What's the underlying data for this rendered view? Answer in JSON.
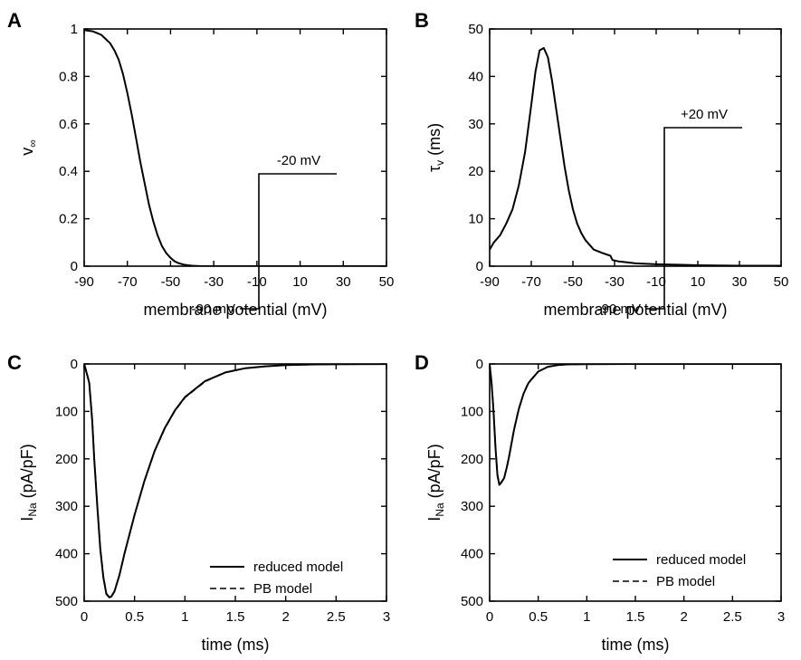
{
  "chart_data": [
    {
      "panel_label": "A",
      "type": "line",
      "xlabel": "membrane potential (mV)",
      "ylabel_main": "v",
      "ylabel_sub": "∞",
      "xlim": [
        -90,
        50
      ],
      "ylim": [
        0,
        1
      ],
      "xticks": [
        "-90",
        "-70",
        "-50",
        "-30",
        "-10",
        "10",
        "30",
        "50"
      ],
      "yticks": [
        "0",
        "0.2",
        "0.4",
        "0.6",
        "0.8",
        "1"
      ],
      "y_inverted": false,
      "series": [
        {
          "style": "solid",
          "x": [
            -90,
            -86,
            -82,
            -78,
            -76,
            -74,
            -72,
            -70,
            -68,
            -66,
            -64,
            -62,
            -60,
            -58,
            -56,
            -54,
            -52,
            -50,
            -48,
            -46,
            -44,
            -42,
            -40,
            -38,
            -35,
            -30,
            -20,
            0,
            20,
            50
          ],
          "y": [
            0.995,
            0.99,
            0.975,
            0.94,
            0.91,
            0.87,
            0.81,
            0.73,
            0.64,
            0.54,
            0.44,
            0.35,
            0.26,
            0.19,
            0.13,
            0.085,
            0.055,
            0.035,
            0.02,
            0.012,
            0.007,
            0.004,
            0.002,
            0.001,
            0,
            0,
            0,
            0,
            0,
            0
          ]
        }
      ]
    },
    {
      "panel_label": "B",
      "type": "line",
      "xlabel": "membrane potential (mV)",
      "ylabel_main": "τ",
      "ylabel_sub": "v",
      "ylabel_unit": " (ms)",
      "xlim": [
        -90,
        50
      ],
      "ylim": [
        0,
        50
      ],
      "xticks": [
        "-90",
        "-70",
        "-50",
        "-30",
        "-10",
        "10",
        "30",
        "50"
      ],
      "yticks": [
        "0",
        "10",
        "20",
        "30",
        "40",
        "50"
      ],
      "y_inverted": false,
      "series": [
        {
          "style": "solid",
          "x": [
            -90,
            -88,
            -85,
            -82,
            -79,
            -76,
            -73,
            -70,
            -68,
            -66,
            -64,
            -62,
            -60,
            -58,
            -56,
            -54,
            -52,
            -50,
            -48,
            -46,
            -44,
            -42,
            -40,
            -36,
            -32,
            -31,
            -28,
            -24,
            -20,
            -10,
            0,
            10,
            30,
            50
          ],
          "y": [
            3.5,
            5,
            6.5,
            9,
            12,
            17,
            24,
            34,
            41,
            45.5,
            46,
            44,
            39,
            33,
            27,
            21,
            16,
            12,
            9,
            7,
            5.5,
            4.5,
            3.5,
            2.8,
            2.2,
            1.3,
            1,
            0.8,
            0.6,
            0.4,
            0.3,
            0.2,
            0.1,
            0.1
          ]
        }
      ]
    },
    {
      "panel_label": "C",
      "type": "line",
      "xlabel": "time (ms)",
      "ylabel_main": "I",
      "ylabel_sub": "Na",
      "ylabel_unit": " (pA/pF)",
      "xlim": [
        0,
        3
      ],
      "ylim": [
        0,
        500
      ],
      "xticks": [
        "0",
        "0.5",
        "1",
        "1.5",
        "2",
        "2.5",
        "3"
      ],
      "yticks": [
        "0",
        "100",
        "200",
        "300",
        "400",
        "500"
      ],
      "y_inverted": true,
      "protocol": {
        "hold_label": "-90 mV",
        "step_label": "-20 mV"
      },
      "legend": [
        "reduced model",
        "PB model"
      ],
      "series": [
        {
          "name": "reduced model",
          "style": "solid",
          "x": [
            0,
            0.02,
            0.05,
            0.08,
            0.1,
            0.13,
            0.16,
            0.19,
            0.22,
            0.25,
            0.27,
            0.3,
            0.35,
            0.4,
            0.5,
            0.6,
            0.7,
            0.8,
            0.9,
            1.0,
            1.2,
            1.4,
            1.6,
            1.8,
            2.0,
            2.3,
            2.6,
            3.0
          ],
          "y": [
            0,
            15,
            40,
            120,
            200,
            300,
            390,
            450,
            485,
            492,
            490,
            480,
            445,
            400,
            318,
            245,
            183,
            135,
            98,
            70,
            36,
            18,
            9,
            5,
            2.5,
            1,
            0.5,
            0.2
          ]
        },
        {
          "name": "PB model",
          "style": "dashed",
          "x": [
            0,
            0.02,
            0.05,
            0.08,
            0.1,
            0.13,
            0.16,
            0.19,
            0.22,
            0.25,
            0.27,
            0.3,
            0.35,
            0.4,
            0.5,
            0.6,
            0.7,
            0.8,
            0.9,
            1.0,
            1.2,
            1.4,
            1.6,
            1.8,
            2.0,
            2.3,
            2.6,
            3.0
          ],
          "y": [
            0,
            14,
            38,
            118,
            198,
            298,
            388,
            448,
            484,
            491,
            489,
            479,
            444,
            400,
            318,
            246,
            184,
            136,
            99,
            71,
            37,
            18,
            9,
            5,
            2.5,
            1,
            0.5,
            0.2
          ]
        }
      ]
    },
    {
      "panel_label": "D",
      "type": "line",
      "xlabel": "time (ms)",
      "ylabel_main": "I",
      "ylabel_sub": "Na",
      "ylabel_unit": " (pA/pF)",
      "xlim": [
        0,
        3
      ],
      "ylim": [
        0,
        500
      ],
      "xticks": [
        "0",
        "0.5",
        "1",
        "1.5",
        "2",
        "2.5",
        "3"
      ],
      "yticks": [
        "0",
        "100",
        "200",
        "300",
        "400",
        "500"
      ],
      "y_inverted": true,
      "protocol": {
        "hold_label": "-90 mV",
        "step_label": "+20 mV"
      },
      "legend": [
        "reduced model",
        "PB model"
      ],
      "series": [
        {
          "name": "reduced model",
          "style": "solid",
          "x": [
            0,
            0.02,
            0.04,
            0.06,
            0.08,
            0.1,
            0.12,
            0.15,
            0.18,
            0.2,
            0.25,
            0.3,
            0.35,
            0.4,
            0.5,
            0.6,
            0.7,
            0.8,
            1.0,
            1.5,
            2.0,
            3.0
          ],
          "y": [
            0,
            40,
            100,
            175,
            235,
            255,
            250,
            240,
            215,
            195,
            140,
            95,
            62,
            40,
            16,
            6,
            2.5,
            1,
            0.3,
            0,
            0,
            0
          ]
        },
        {
          "name": "PB model",
          "style": "dashed",
          "x": [
            0,
            0.02,
            0.04,
            0.06,
            0.08,
            0.1,
            0.12,
            0.15,
            0.18,
            0.2,
            0.25,
            0.3,
            0.35,
            0.4,
            0.5,
            0.6,
            0.7,
            0.8,
            1.0,
            1.5,
            2.0,
            3.0
          ],
          "y": [
            0,
            38,
            98,
            172,
            232,
            253,
            249,
            239,
            214,
            194,
            139,
            94,
            61,
            39,
            16,
            6,
            2.5,
            1,
            0.3,
            0,
            0,
            0
          ]
        }
      ]
    }
  ]
}
